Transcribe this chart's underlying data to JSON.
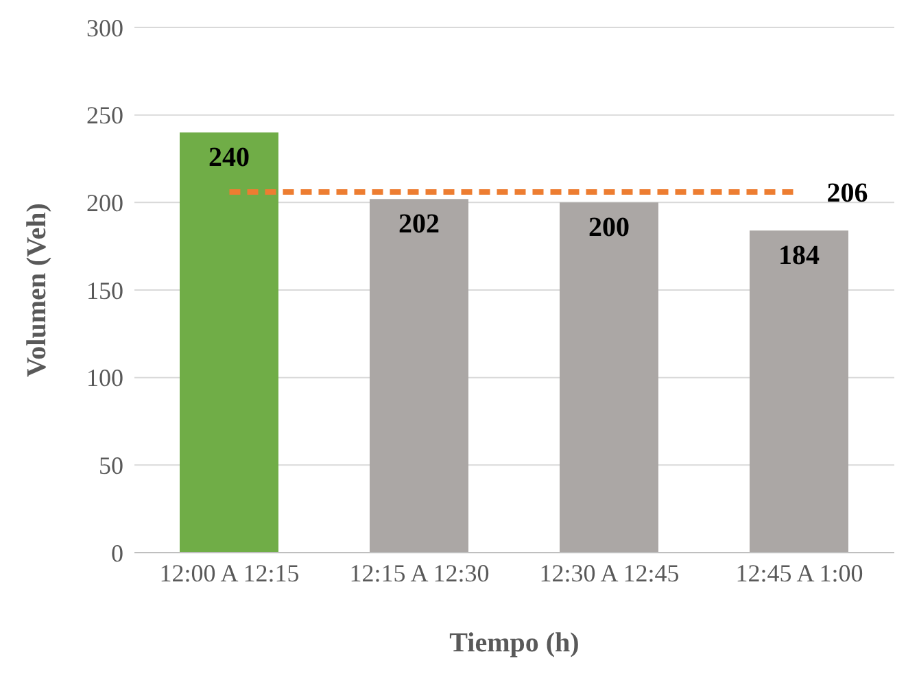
{
  "chart_data": {
    "type": "bar",
    "xlabel": "Tiempo (h)",
    "ylabel": "Volumen (Veh)",
    "categories": [
      "12:00 A 12:15",
      "12:15 A 12:30",
      "12:30 A 12:45",
      "12:45 A 1:00"
    ],
    "values": [
      240,
      202,
      200,
      184
    ],
    "colors": [
      "#70ad47",
      "#aba7a5",
      "#aba7a5",
      "#aba7a5"
    ],
    "ylim": [
      0,
      300
    ],
    "yticks": [
      0,
      50,
      100,
      150,
      200,
      250,
      300
    ],
    "grid": "y",
    "legend": false,
    "data_labels": true,
    "ref_lines": [
      {
        "axis": "y",
        "value": 206,
        "label": "206",
        "color": "#ed7d31",
        "line_style": "dashed"
      }
    ]
  }
}
